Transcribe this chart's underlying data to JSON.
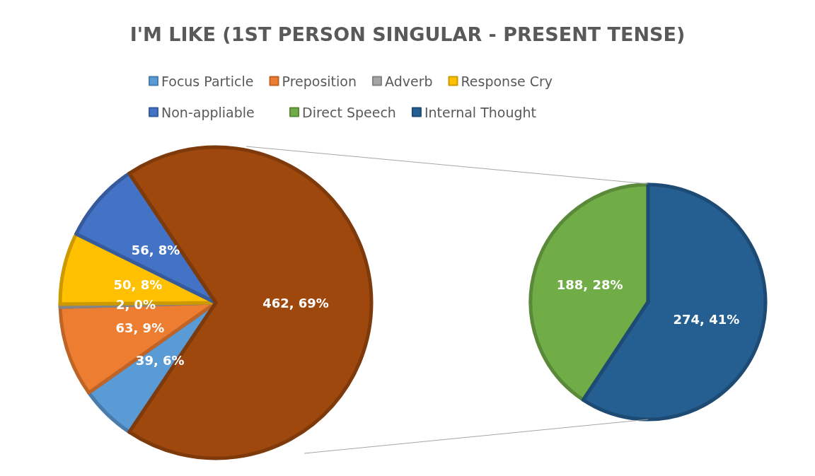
{
  "chart_data": [
    {
      "type": "pie",
      "title": "I'M LIKE (1ST PERSON SINGULAR - PRESENT TENSE)",
      "legend": "top",
      "categories": [
        "Focus Particle",
        "Preposition",
        "Adverb",
        "Response Cry",
        "Non-appliable",
        null
      ],
      "values": [
        39,
        63,
        2,
        50,
        56,
        462
      ],
      "colors": [
        "#5b9bd5",
        "#ed7d31",
        "#a5a5a5",
        "#ffc000",
        "#4472c4",
        "#9e480e"
      ],
      "value_labels": [
        "39, 6%",
        "63, 9%",
        "2, 0%",
        "50, 8%",
        "56, 8%",
        "462, 69%"
      ]
    },
    {
      "type": "pie",
      "legend": "top",
      "categories": [
        "Direct Speech",
        "Internal Thought"
      ],
      "values": [
        188,
        274
      ],
      "colors": [
        "#70ad47",
        "#255e91"
      ],
      "value_labels": [
        "188, 28%",
        "274, 41%"
      ]
    }
  ]
}
